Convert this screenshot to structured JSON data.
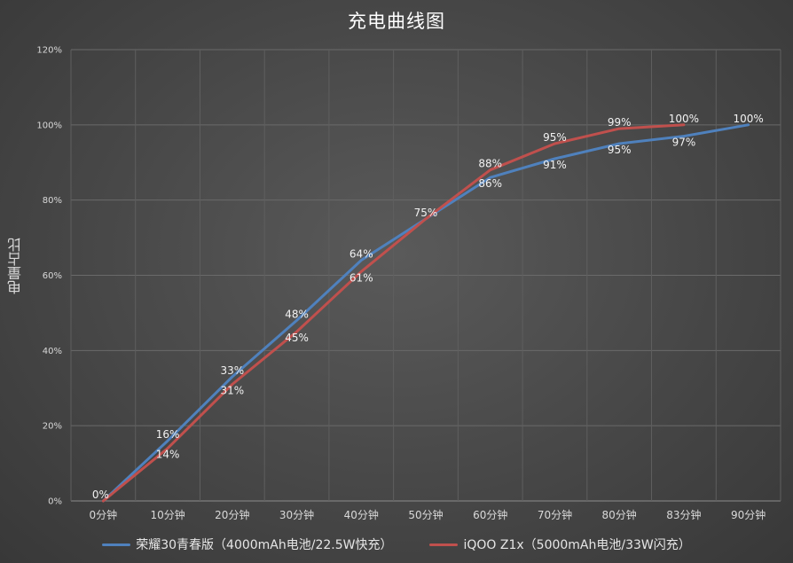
{
  "chart_data": {
    "type": "line",
    "title": "充电曲线图",
    "ylabel": "电量占比",
    "xlabel": "",
    "categories": [
      "0分钟",
      "10分钟",
      "20分钟",
      "30分钟",
      "40分钟",
      "50分钟",
      "60分钟",
      "70分钟",
      "80分钟",
      "83分钟",
      "90分钟"
    ],
    "ylim": [
      0,
      120
    ],
    "yticks": [
      0,
      20,
      40,
      60,
      80,
      100,
      120
    ],
    "ytick_suffix": "%",
    "grid": true,
    "legend_position": "bottom",
    "series": [
      {
        "name": "荣耀30青春版（4000mAh电池/22.5W快充）",
        "color": "#4f81bd",
        "values": [
          0,
          16,
          33,
          48,
          64,
          75,
          86,
          91,
          95,
          97,
          100
        ]
      },
      {
        "name": "iQOO Z1x（5000mAh电池/33W闪充）",
        "color": "#c0504d",
        "values": [
          0,
          14,
          31,
          45,
          61,
          75,
          88,
          95,
          99,
          100,
          null
        ]
      }
    ]
  }
}
